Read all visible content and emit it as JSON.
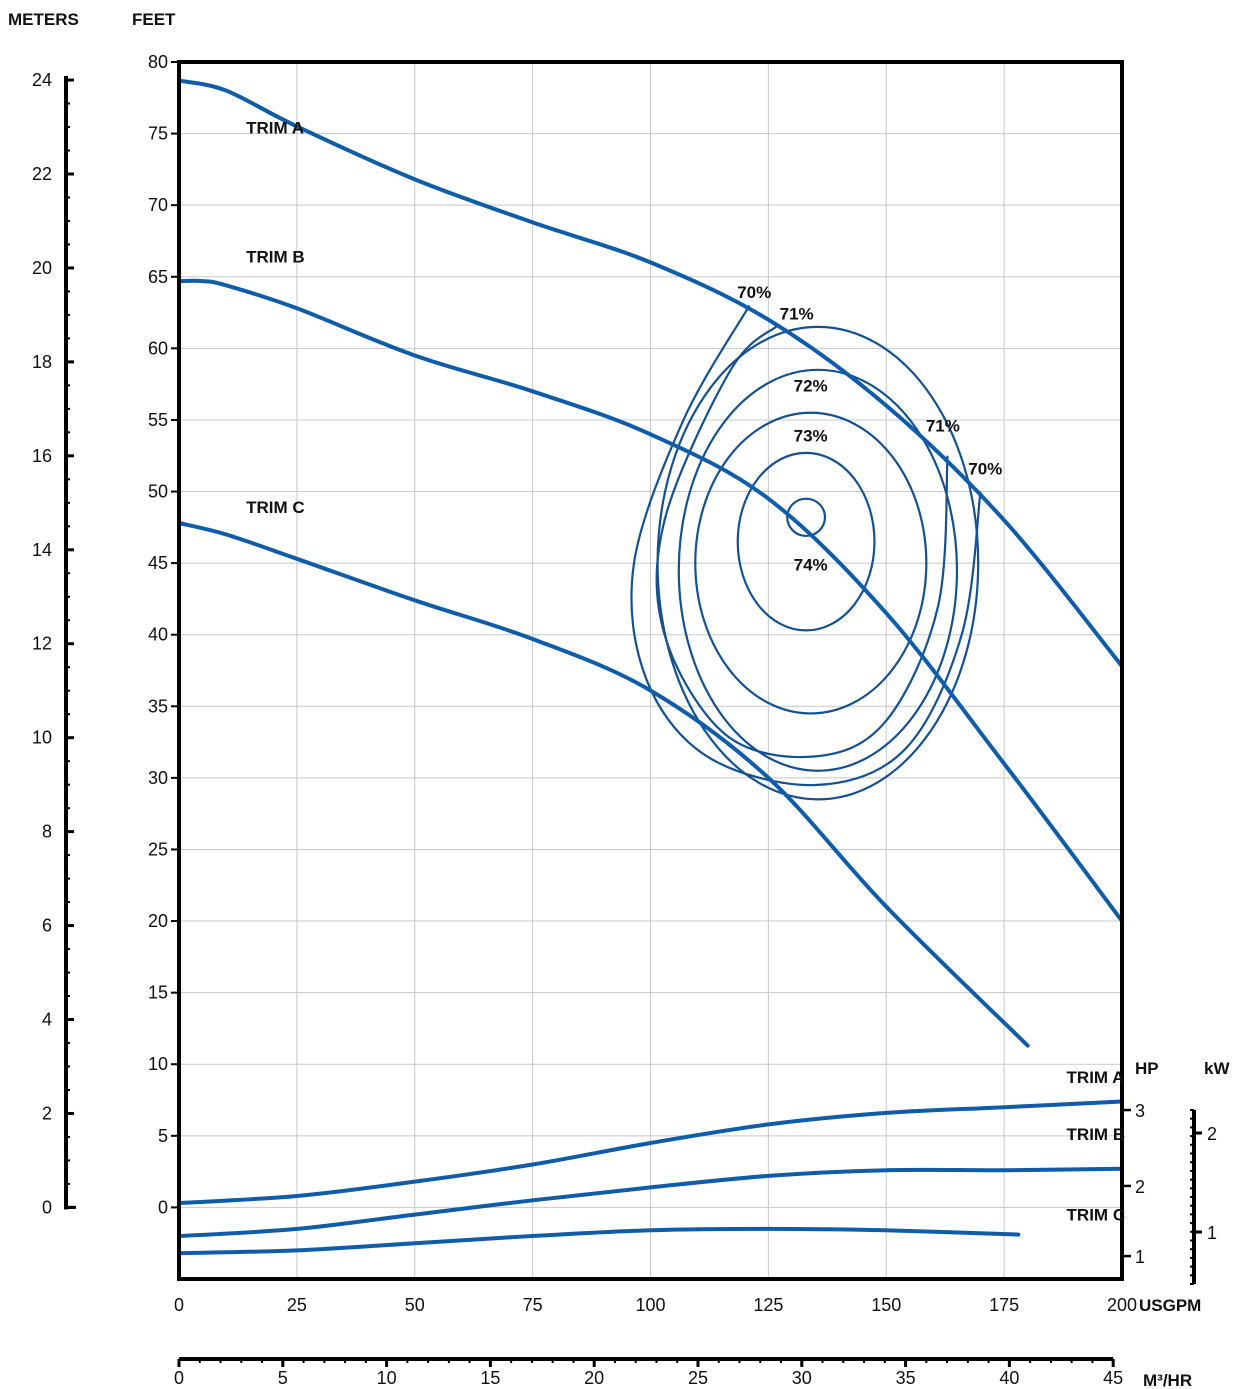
{
  "chart_data": {
    "type": "line",
    "title": "",
    "x_axes": {
      "primary": {
        "label": "USGPM",
        "range": [
          0,
          200
        ],
        "ticks": [
          0,
          25,
          50,
          75,
          100,
          125,
          150,
          175,
          200
        ]
      },
      "secondary": {
        "label": "M³/HR",
        "range": [
          0,
          45
        ],
        "ticks": [
          0,
          5,
          10,
          15,
          20,
          25,
          30,
          35,
          40,
          45
        ]
      }
    },
    "y_axes": {
      "feet": {
        "label": "FEET",
        "range": [
          -5,
          80
        ],
        "ticks": [
          0,
          5,
          10,
          15,
          20,
          25,
          30,
          35,
          40,
          45,
          50,
          55,
          60,
          65,
          70,
          75,
          80
        ]
      },
      "meters": {
        "label": "METERS",
        "range": [
          0,
          24
        ],
        "ticks": [
          0,
          2,
          4,
          6,
          8,
          10,
          12,
          14,
          16,
          18,
          20,
          22,
          24
        ]
      },
      "hp": {
        "label": "HP",
        "ticks": [
          1,
          2,
          3
        ]
      },
      "kw": {
        "label": "kW",
        "ticks": [
          1,
          2
        ]
      }
    },
    "grid": true,
    "head_curves": [
      {
        "name": "TRIM A",
        "label_at": [
          10,
          75
        ],
        "x": [
          0,
          10,
          25,
          50,
          75,
          100,
          125,
          150,
          175,
          200
        ],
        "y": [
          78.7,
          78.0,
          75.5,
          71.8,
          68.8,
          66.0,
          62.0,
          56.0,
          48.0,
          37.8
        ]
      },
      {
        "name": "TRIM B",
        "label_at": [
          10,
          66
        ],
        "x": [
          0,
          5,
          10,
          25,
          50,
          75,
          100,
          125,
          150,
          175,
          200
        ],
        "y": [
          64.7,
          64.7,
          64.4,
          62.8,
          59.5,
          57.0,
          54.0,
          49.5,
          41.5,
          31.0,
          20.0
        ]
      },
      {
        "name": "TRIM C",
        "label_at": [
          10,
          48.5
        ],
        "x": [
          0,
          10,
          25,
          50,
          75,
          100,
          125,
          150,
          180
        ],
        "y": [
          47.8,
          47.0,
          45.3,
          42.4,
          39.7,
          36.1,
          30.0,
          21.0,
          11.3
        ]
      }
    ],
    "power_curves": [
      {
        "name": "TRIM A",
        "label_at": [
          184,
          8.7
        ],
        "x": [
          0,
          25,
          50,
          75,
          100,
          125,
          150,
          175,
          200
        ],
        "y": [
          0.3,
          0.8,
          1.8,
          3.0,
          4.5,
          5.8,
          6.6,
          7.0,
          7.4
        ]
      },
      {
        "name": "TRIM B",
        "label_at": [
          184,
          4.7
        ],
        "x": [
          0,
          25,
          50,
          75,
          100,
          125,
          150,
          175,
          200
        ],
        "y": [
          -2.0,
          -1.5,
          -0.5,
          0.5,
          1.4,
          2.2,
          2.6,
          2.6,
          2.7
        ]
      },
      {
        "name": "TRIM C",
        "label_at": [
          184,
          -0.9
        ],
        "x": [
          0,
          25,
          50,
          75,
          100,
          125,
          150,
          178
        ],
        "y": [
          -3.2,
          -3.0,
          -2.5,
          -2.0,
          -1.6,
          -1.5,
          -1.6,
          -1.9
        ]
      }
    ],
    "efficiency_contours": [
      {
        "label": "74%",
        "label_at": [
          131,
          44.5
        ],
        "center": [
          133,
          48.2
        ],
        "rx": 4,
        "ry": 1.3
      },
      {
        "label": "73%",
        "label_at": [
          131,
          53.5
        ],
        "center": [
          133,
          46.5
        ],
        "rx": 14.5,
        "ry": 6.2
      },
      {
        "label": "72%",
        "label_at": [
          131,
          57.0
        ],
        "center": [
          134,
          45.0
        ],
        "rx": 24.5,
        "ry": 10.5
      },
      {
        "label": "",
        "center": [
          135.5,
          44.5
        ],
        "rx": 29.5,
        "ry": 14.0
      },
      {
        "label": "",
        "center": [
          135.5,
          45.0
        ],
        "rx": 34.0,
        "ry": 16.5
      },
      {
        "label": "71%",
        "label_positions": [
          [
            131,
            62.0
          ],
          [
            162,
            54.2
          ]
        ],
        "path": [
          [
            127,
            61.6
          ],
          [
            117,
            58.5
          ],
          [
            103,
            48.0
          ],
          [
            103,
            40.0
          ],
          [
            116,
            33.0
          ],
          [
            135,
            31.5
          ],
          [
            150,
            34.0
          ],
          [
            161,
            42.0
          ],
          [
            163,
            52.5
          ]
        ]
      },
      {
        "label": "70%",
        "label_positions": [
          [
            122,
            63.5
          ],
          [
            171,
            51.2
          ]
        ],
        "path": [
          [
            121,
            63.0
          ],
          [
            107,
            55.0
          ],
          [
            96.5,
            45.0
          ],
          [
            99,
            37.0
          ],
          [
            112,
            31.5
          ],
          [
            135,
            29.5
          ],
          [
            154,
            32.0
          ],
          [
            166,
            40.0
          ],
          [
            170,
            50.0
          ]
        ]
      }
    ]
  }
}
